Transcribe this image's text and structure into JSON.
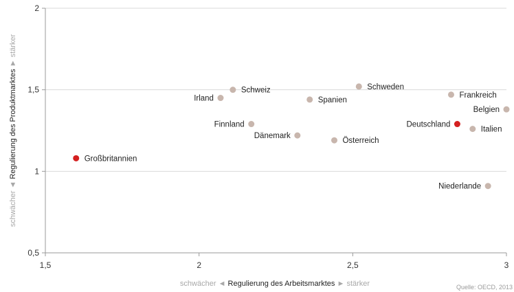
{
  "chart_data": {
    "type": "scatter",
    "title": "",
    "xlabel": "Regulierung des Arbeitsmarktes",
    "xlabel_left": "schwächer",
    "xlabel_right": "stärker",
    "ylabel": "Regulierung des Produktmarktes",
    "ylabel_low": "schwächer",
    "ylabel_high": "stärker",
    "xlim": [
      1.5,
      3
    ],
    "ylim": [
      0.5,
      2
    ],
    "xticks": [
      "1,5",
      "2",
      "2,5",
      "3"
    ],
    "yticks": [
      "0,5",
      "1",
      "1,5",
      "2"
    ],
    "grid": "horizontal",
    "legend": "none",
    "source": "Quelle: OECD, 2013",
    "colors": {
      "default": "#c8b6ad",
      "highlight": "#d42020",
      "grid": "#d9d9d9",
      "axis": "#999999"
    },
    "points": [
      {
        "name": "Großbritannien",
        "x": 1.6,
        "y": 1.08,
        "highlight": true,
        "label_pos": "right"
      },
      {
        "name": "Irland",
        "x": 2.07,
        "y": 1.45,
        "highlight": false,
        "label_pos": "left"
      },
      {
        "name": "Schweiz",
        "x": 2.11,
        "y": 1.5,
        "highlight": false,
        "label_pos": "right"
      },
      {
        "name": "Finnland",
        "x": 2.17,
        "y": 1.29,
        "highlight": false,
        "label_pos": "left"
      },
      {
        "name": "Dänemark",
        "x": 2.32,
        "y": 1.22,
        "highlight": false,
        "label_pos": "left"
      },
      {
        "name": "Spanien",
        "x": 2.36,
        "y": 1.44,
        "highlight": false,
        "label_pos": "right"
      },
      {
        "name": "Österreich",
        "x": 2.44,
        "y": 1.19,
        "highlight": false,
        "label_pos": "right"
      },
      {
        "name": "Schweden",
        "x": 2.52,
        "y": 1.52,
        "highlight": false,
        "label_pos": "right"
      },
      {
        "name": "Frankreich",
        "x": 2.82,
        "y": 1.47,
        "highlight": false,
        "label_pos": "right"
      },
      {
        "name": "Deutschland",
        "x": 2.84,
        "y": 1.29,
        "highlight": true,
        "label_pos": "left"
      },
      {
        "name": "Italien",
        "x": 2.89,
        "y": 1.26,
        "highlight": false,
        "label_pos": "right"
      },
      {
        "name": "Belgien",
        "x": 3.0,
        "y": 1.38,
        "highlight": false,
        "label_pos": "left"
      },
      {
        "name": "Niederlande",
        "x": 2.94,
        "y": 0.91,
        "highlight": false,
        "label_pos": "left"
      }
    ]
  }
}
